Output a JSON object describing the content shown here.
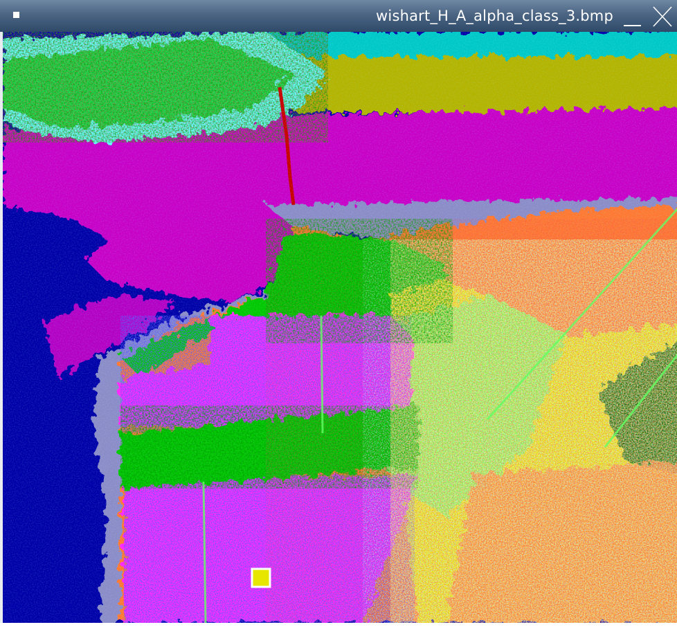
{
  "window": {
    "title": "wishart_H_A_alpha_class_3.bmp",
    "titlebar_color": "#3f5878"
  },
  "image": {
    "description_class_colors": {
      "ocean_deep": "#0000a8",
      "bay_magenta": "#c800c8",
      "bay_olive": "#b4b400",
      "bay_cyan": "#00c8c8",
      "slope_grey": "#8c8cc8",
      "vegetation_green": "#00c800",
      "vegetation_dark": "#006400",
      "vegetation_light": "#64ff64",
      "urban_magenta": "#ff28ff",
      "urban_blue": "#6400ff",
      "urban_yellow": "#e6e600",
      "urban_orange": "#ff7830",
      "urban_red": "#e61e1e",
      "light_cyan": "#64ffff"
    }
  }
}
